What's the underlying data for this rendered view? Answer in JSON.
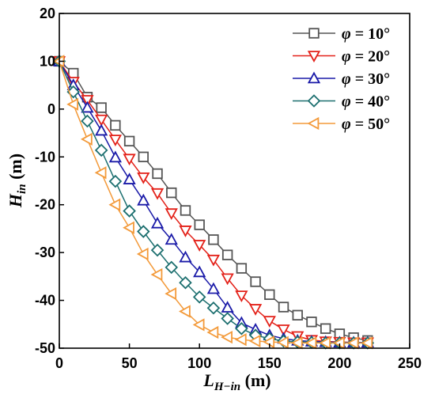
{
  "chart_data": {
    "type": "line",
    "xlabel": {
      "main": "L",
      "sub": "H−in",
      "unit": " (m)"
    },
    "ylabel": {
      "main": "H",
      "sub": "in",
      "unit": " (m)"
    },
    "xlim": [
      0,
      250
    ],
    "ylim": [
      -50,
      20
    ],
    "xticks": [
      0,
      50,
      100,
      150,
      200,
      250
    ],
    "yticks": [
      -50,
      -40,
      -30,
      -20,
      -10,
      0,
      10,
      20
    ],
    "xtick_labels": [
      "0",
      "50",
      "100",
      "150",
      "200",
      "250"
    ],
    "ytick_labels": [
      "-50",
      "-40",
      "-30",
      "-20",
      "-10",
      "0",
      "10",
      "20"
    ],
    "grid": false,
    "legend_position": "top-right",
    "series": [
      {
        "name": "φ = 10°",
        "name_symbol": "φ",
        "name_value": " = 10°",
        "color": "#555555",
        "marker": "square",
        "x": [
          0,
          10,
          20,
          30,
          40,
          50,
          60,
          70,
          80,
          90,
          100,
          110,
          120,
          130,
          140,
          150,
          160,
          170,
          180,
          190,
          200,
          210,
          220
        ],
        "y": [
          10,
          7.5,
          2.5,
          0.3,
          -3.4,
          -6.7,
          -10.0,
          -13.5,
          -17.5,
          -21.2,
          -24.2,
          -27.3,
          -30.5,
          -33.3,
          -36.1,
          -38.8,
          -41.4,
          -43.1,
          -44.5,
          -45.9,
          -47.0,
          -47.8,
          -48.4
        ]
      },
      {
        "name": "φ = 20°",
        "name_symbol": "φ",
        "name_value": " = 20°",
        "color": "#e32119",
        "marker": "triangle-down",
        "x": [
          0,
          10,
          20,
          30,
          40,
          50,
          60,
          70,
          80,
          90,
          100,
          110,
          120,
          130,
          140,
          150,
          160,
          170,
          180,
          190,
          200,
          210,
          220
        ],
        "y": [
          10,
          5.7,
          1.9,
          -2.2,
          -6.4,
          -10.4,
          -14.3,
          -17.6,
          -21.8,
          -25.4,
          -28.4,
          -31.5,
          -35.4,
          -39.0,
          -41.8,
          -44.3,
          -46.1,
          -47.5,
          -48.3,
          -48.6,
          -48.7,
          -48.8,
          -48.8
        ]
      },
      {
        "name": "φ = 30°",
        "name_symbol": "φ",
        "name_value": " = 30°",
        "color": "#1a1aa8",
        "marker": "triangle-up",
        "x": [
          0,
          10,
          20,
          30,
          40,
          50,
          60,
          70,
          80,
          90,
          100,
          110,
          120,
          130,
          140,
          150,
          160,
          170,
          180,
          190,
          200,
          210,
          220
        ],
        "y": [
          10,
          5.0,
          0.3,
          -4.5,
          -10.1,
          -14.7,
          -19.1,
          -23.9,
          -27.3,
          -31.0,
          -34.1,
          -37.6,
          -41.5,
          -44.7,
          -46.1,
          -47.3,
          -48.0,
          -48.4,
          -48.6,
          -48.7,
          -48.8,
          -48.8,
          -48.8
        ]
      },
      {
        "name": "φ = 40°",
        "name_symbol": "φ",
        "name_value": " = 40°",
        "color": "#1c6f6f",
        "marker": "diamond",
        "x": [
          0,
          10,
          20,
          30,
          40,
          50,
          60,
          70,
          80,
          90,
          100,
          110,
          120,
          130,
          140,
          150,
          160,
          170,
          180,
          190,
          200,
          210,
          220
        ],
        "y": [
          10,
          3.6,
          -2.5,
          -8.6,
          -15.1,
          -21.3,
          -25.6,
          -29.5,
          -33.1,
          -36.3,
          -39.3,
          -41.6,
          -43.8,
          -45.9,
          -47.3,
          -48.0,
          -48.5,
          -48.7,
          -48.8,
          -48.9,
          -48.9,
          -48.9,
          -48.9
        ]
      },
      {
        "name": "φ = 50°",
        "name_symbol": "φ",
        "name_value": " = 50°",
        "color": "#f39a3a",
        "marker": "triangle-left",
        "x": [
          0,
          10,
          20,
          30,
          40,
          50,
          60,
          70,
          80,
          90,
          100,
          110,
          120,
          130,
          140,
          150,
          160,
          170,
          180,
          190,
          200,
          210,
          220
        ],
        "y": [
          10,
          1.0,
          -6.3,
          -13.3,
          -20.0,
          -24.8,
          -30.3,
          -34.6,
          -38.6,
          -42.3,
          -45.1,
          -46.7,
          -47.7,
          -48.2,
          -48.5,
          -48.7,
          -48.8,
          -48.9,
          -48.9,
          -48.9,
          -48.9,
          -48.9,
          -48.9
        ]
      }
    ]
  }
}
